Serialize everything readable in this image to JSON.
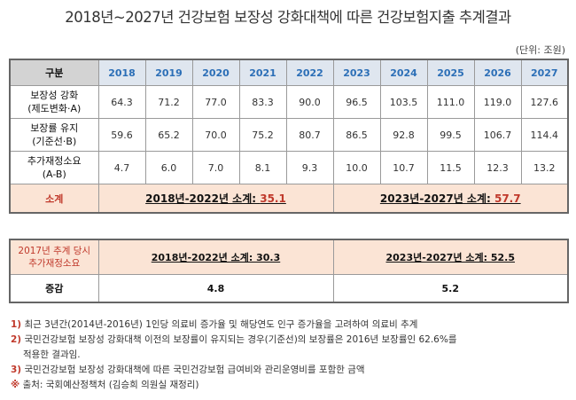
{
  "title": "2018년~2027년 건강보험 보장성 강화대책에 따른 건강보험지출 추계결과",
  "unit": "(단위: 조원)",
  "table": {
    "gubun": "구분",
    "years": [
      "2018",
      "2019",
      "2020",
      "2021",
      "2022",
      "2023",
      "2024",
      "2025",
      "2026",
      "2027"
    ],
    "rows": [
      {
        "label1": "보장성 강화",
        "label2": "(제도변화·A)",
        "values": [
          "64.3",
          "71.2",
          "77.0",
          "83.3",
          "90.0",
          "96.5",
          "103.5",
          "111.0",
          "119.0",
          "127.6"
        ]
      },
      {
        "label1": "보장률 유지",
        "label2": "(기준선·B)",
        "values": [
          "59.6",
          "65.2",
          "70.0",
          "75.2",
          "80.7",
          "86.5",
          "92.8",
          "99.5",
          "106.7",
          "114.4"
        ]
      },
      {
        "label1": "추가재정소요",
        "label2": "(A-B)",
        "values": [
          "4.7",
          "6.0",
          "7.0",
          "8.1",
          "9.3",
          "10.0",
          "10.7",
          "11.5",
          "12.3",
          "13.2"
        ]
      }
    ],
    "sum": {
      "label": "소계",
      "left_text": "2018년-2022년 소계: ",
      "left_value": "35.1",
      "right_text": "2023년-2027년 소계: ",
      "right_value": "57.7"
    }
  },
  "prev": {
    "label1": "2017년 추계 당시",
    "label2": "추가재정소요",
    "left": "2018년-2022년 소계: 30.3",
    "right": "2023년-2027년 소계: 52.5",
    "diff_label": "증감",
    "diff_left": "4.8",
    "diff_right": "5.2"
  },
  "notes": [
    {
      "mark": "1)",
      "text": "최근 3년간(2014년-2016년) 1인당 의료비 증가율 및 해당연도 인구 증가율을 고려하여 의료비 추계"
    },
    {
      "mark": "2)",
      "text": "국민건강보험 보장성 강화대책 이전의 보장률이 유지되는 경우(기준선)의 보장률은 2016년 보장률인 62.6%를"
    },
    {
      "mark": "",
      "text": "적용한 결과임."
    },
    {
      "mark": "3)",
      "text": "국민건강보험 보장성 강화대책에 따른 국민건강보험 급여비와 관리운영비를 포함한 금액"
    },
    {
      "mark": "※",
      "text": "출처: 국회예산정책처 (김승희 의원실 재정리)"
    }
  ]
}
